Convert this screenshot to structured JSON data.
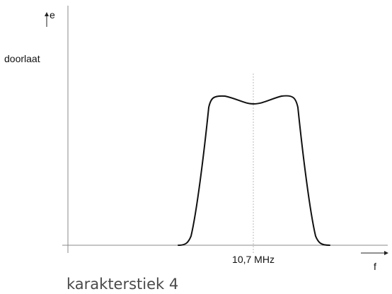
{
  "diagram": {
    "y_axis_symbol": "e",
    "y_axis_label": "doorlaat",
    "x_axis_symbol": "f",
    "center_label": "10,7 MHz",
    "caption": "karakterstiek 4"
  },
  "colors": {
    "curve": "#111111",
    "axis": "#888888",
    "center_line": "#bbbbbb",
    "caption": "#4a4a4a"
  }
}
